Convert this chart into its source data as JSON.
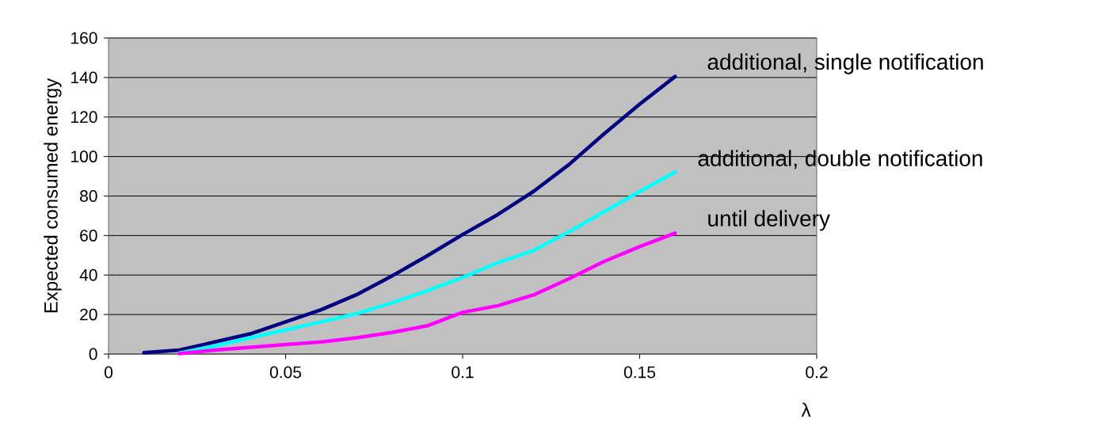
{
  "chart_data": {
    "type": "line",
    "xlabel": "λ",
    "ylabel": "Expected consumed energy",
    "xlim": [
      0,
      0.2
    ],
    "xticks": [
      0,
      0.05,
      0.1,
      0.15,
      0.2
    ],
    "ylim": [
      0,
      160
    ],
    "yticks": [
      0,
      20,
      40,
      60,
      80,
      100,
      120,
      140,
      160
    ],
    "grid": "y",
    "series": [
      {
        "name": "additional, single notification",
        "color": "#000080",
        "x": [
          0.01,
          0.02,
          0.03,
          0.04,
          0.05,
          0.06,
          0.07,
          0.08,
          0.09,
          0.1,
          0.11,
          0.12,
          0.13,
          0.14,
          0.15,
          0.16
        ],
        "values": [
          0.7,
          2,
          6.1,
          10.2,
          16.3,
          22.4,
          30,
          39.5,
          49.7,
          60.5,
          70.7,
          82.3,
          95.9,
          111.6,
          126.5,
          140.5
        ]
      },
      {
        "name": "additional, double notification",
        "color": "#00ffff",
        "x": [
          0.02,
          0.03,
          0.04,
          0.05,
          0.06,
          0.07,
          0.08,
          0.09,
          0.1,
          0.11,
          0.12,
          0.13,
          0.14,
          0.15,
          0.16
        ],
        "values": [
          0.5,
          4.1,
          8.2,
          12.2,
          16.3,
          20.4,
          25.9,
          32,
          38.8,
          46.3,
          52.4,
          61.9,
          72.1,
          82.3,
          92.1
        ]
      },
      {
        "name": "until delivery",
        "color": "#ff00ff",
        "x": [
          0.02,
          0.03,
          0.04,
          0.05,
          0.06,
          0.07,
          0.08,
          0.09,
          0.1,
          0.11,
          0.12,
          0.13,
          0.14,
          0.15,
          0.16
        ],
        "values": [
          0.2,
          2,
          3.4,
          4.8,
          6.1,
          8.2,
          10.9,
          14.3,
          21.1,
          24.5,
          29.9,
          38.1,
          46.9,
          54.4,
          61.2
        ]
      }
    ]
  }
}
